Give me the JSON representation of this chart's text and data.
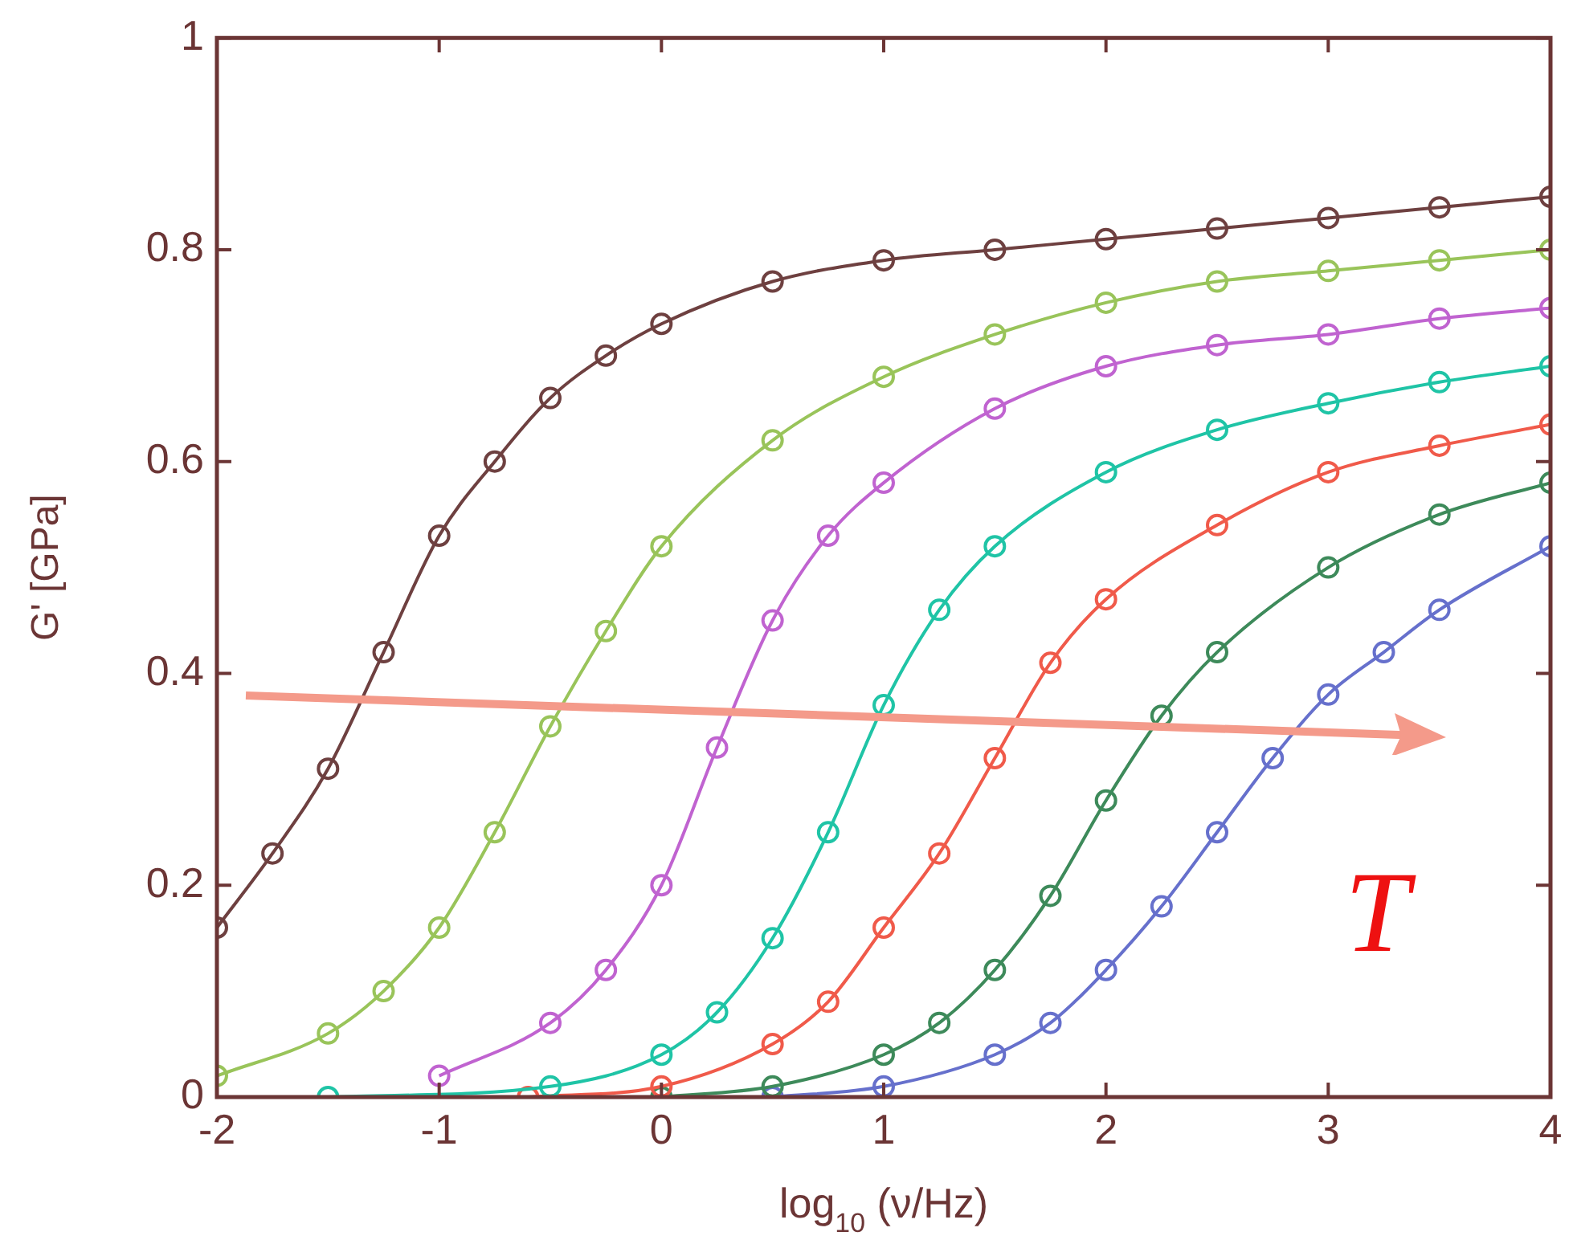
{
  "chart_data": {
    "type": "line",
    "xlabel": "log$_{10}$ (ν/Hz)",
    "ylabel": "G' [GPa]",
    "annotations": [
      "T"
    ],
    "xlim": [
      -2,
      4
    ],
    "xticks": [
      -2,
      -1,
      0,
      1,
      2,
      3,
      4
    ],
    "ylim": [
      0,
      1
    ],
    "yticks": [
      0,
      0.2,
      0.4,
      0.6,
      0.8,
      1
    ],
    "grid": false,
    "legend": false,
    "marker": "circle",
    "line_style": "solid",
    "series": [
      {
        "color": "#6e4040",
        "x": [
          -2,
          -1.75,
          -1.5,
          -1.25,
          -1,
          -0.75,
          -0.5,
          -0.25,
          0,
          0.5,
          1,
          1.5,
          2,
          2.5,
          3,
          3.5,
          4
        ],
        "values": [
          0.16,
          0.23,
          0.31,
          0.42,
          0.53,
          0.6,
          0.66,
          0.7,
          0.73,
          0.77,
          0.79,
          0.8,
          0.81,
          0.82,
          0.83,
          0.84,
          0.85
        ]
      },
      {
        "color": "#99c45a",
        "x": [
          -2,
          -1.5,
          -1.25,
          -1,
          -0.75,
          -0.5,
          -0.25,
          0,
          0.5,
          1,
          1.5,
          2,
          2.5,
          3,
          3.5,
          4
        ],
        "values": [
          0.02,
          0.06,
          0.1,
          0.16,
          0.25,
          0.35,
          0.44,
          0.52,
          0.62,
          0.68,
          0.72,
          0.75,
          0.77,
          0.78,
          0.79,
          0.8
        ]
      },
      {
        "color": "#c063d0",
        "x": [
          -1,
          -0.5,
          -0.25,
          0,
          0.25,
          0.5,
          0.75,
          1,
          1.5,
          2,
          2.5,
          3,
          3.5,
          4
        ],
        "values": [
          0.02,
          0.07,
          0.12,
          0.2,
          0.33,
          0.45,
          0.53,
          0.58,
          0.65,
          0.69,
          0.71,
          0.72,
          0.735,
          0.745
        ]
      },
      {
        "color": "#1fc4a6",
        "x": [
          -1.5,
          -0.5,
          0,
          0.25,
          0.5,
          0.75,
          1,
          1.25,
          1.5,
          2,
          2.5,
          3,
          3.5,
          4
        ],
        "values": [
          0,
          0.01,
          0.04,
          0.08,
          0.15,
          0.25,
          0.37,
          0.46,
          0.52,
          0.59,
          0.63,
          0.655,
          0.675,
          0.69
        ]
      },
      {
        "color": "#f05a4a",
        "x": [
          -0.6,
          0,
          0.5,
          0.75,
          1,
          1.25,
          1.5,
          1.75,
          2,
          2.5,
          3,
          3.5,
          4
        ],
        "values": [
          0,
          0.01,
          0.05,
          0.09,
          0.16,
          0.23,
          0.32,
          0.41,
          0.47,
          0.54,
          0.59,
          0.615,
          0.635
        ]
      },
      {
        "color": "#3d8a5a",
        "x": [
          0,
          0.5,
          1,
          1.25,
          1.5,
          1.75,
          2,
          2.25,
          2.5,
          3,
          3.5,
          4
        ],
        "values": [
          0,
          0.01,
          0.04,
          0.07,
          0.12,
          0.19,
          0.28,
          0.36,
          0.42,
          0.5,
          0.55,
          0.58
        ]
      },
      {
        "color": "#6670cc",
        "x": [
          0.5,
          1,
          1.5,
          1.75,
          2,
          2.25,
          2.5,
          2.75,
          3,
          3.25,
          3.5,
          4
        ],
        "values": [
          0,
          0.01,
          0.04,
          0.07,
          0.12,
          0.18,
          0.25,
          0.32,
          0.38,
          0.42,
          0.46,
          0.52
        ]
      }
    ]
  }
}
